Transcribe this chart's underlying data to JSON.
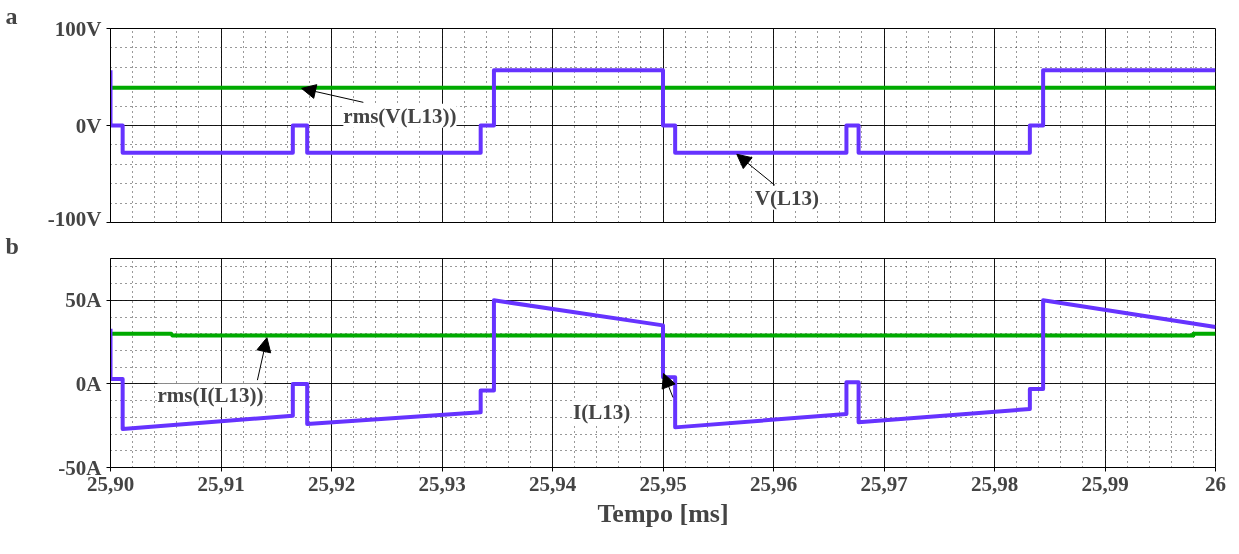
{
  "chart_data": [
    {
      "type": "line",
      "title": "a",
      "xlim": [
        25.9,
        26.0
      ],
      "ylim": [
        -100,
        100
      ],
      "xticks": [
        {
          "value": 25.9,
          "label": null
        },
        {
          "value": 25.91,
          "label": null
        },
        {
          "value": 25.92,
          "label": null
        },
        {
          "value": 25.93,
          "label": null
        },
        {
          "value": 25.94,
          "label": null
        },
        {
          "value": 25.95,
          "label": null
        },
        {
          "value": 25.96,
          "label": null
        },
        {
          "value": 25.97,
          "label": null
        },
        {
          "value": 25.98,
          "label": null
        },
        {
          "value": 25.99,
          "label": null
        },
        {
          "value": 26.0,
          "label": null
        }
      ],
      "yticks": [
        {
          "value": -100,
          "label": "-100V"
        },
        {
          "value": 0,
          "label": "0V"
        },
        {
          "value": 100,
          "label": "100V"
        }
      ],
      "tick_labels": "y",
      "grid": true,
      "line_style": "solid",
      "series": [
        {
          "color": "#00aa00",
          "x": [
            25.9,
            26.0
          ],
          "values": [
            39,
            39
          ]
        },
        {
          "color": "#6633ff",
          "x": [
            25.9,
            25.9,
            25.9011,
            25.9011,
            25.9165,
            25.9165,
            25.9178,
            25.9178,
            25.9335,
            25.9335,
            25.9347,
            25.9347,
            25.95,
            25.95,
            25.9511,
            25.9511,
            25.9666,
            25.9666,
            25.9677,
            25.9677,
            25.9832,
            25.9832,
            25.9844,
            25.9844,
            26.0
          ],
          "values": [
            57,
            0,
            0,
            -28,
            -28,
            0,
            0,
            -28,
            -28,
            0,
            0,
            57,
            57,
            0,
            0,
            -28,
            -28,
            0,
            0,
            -28,
            -28,
            0,
            0,
            57,
            57
          ]
        }
      ],
      "annotations": [
        {
          "text": "rms(V(L13))",
          "x": 25.917,
          "y": 39
        },
        {
          "text": "V(L13)",
          "x": 25.9565,
          "y": -28
        }
      ]
    },
    {
      "type": "line",
      "title": "b",
      "xlabel": "Tempo [ms]",
      "xlim": [
        25.9,
        26.0
      ],
      "ylim": [
        -50,
        75
      ],
      "xticks": [
        {
          "value": 25.9,
          "label": "25,90"
        },
        {
          "value": 25.91,
          "label": "25,91"
        },
        {
          "value": 25.92,
          "label": "25,92"
        },
        {
          "value": 25.93,
          "label": "25,93"
        },
        {
          "value": 25.94,
          "label": "25,94"
        },
        {
          "value": 25.95,
          "label": "25,95"
        },
        {
          "value": 25.96,
          "label": "25,96"
        },
        {
          "value": 25.97,
          "label": "25,97"
        },
        {
          "value": 25.98,
          "label": "25,98"
        },
        {
          "value": 25.99,
          "label": "25,99"
        },
        {
          "value": 26.0,
          "label": "26"
        }
      ],
      "yticks": [
        {
          "value": -50,
          "label": "-50A"
        },
        {
          "value": 0,
          "label": "0A"
        },
        {
          "value": 50,
          "label": "50A"
        }
      ],
      "grid": true,
      "line_style": "solid",
      "series": [
        {
          "color": "#00aa00",
          "x": [
            25.9,
            25.9055,
            25.9056,
            25.998,
            25.998,
            26.0
          ],
          "values": [
            30,
            30,
            29,
            29,
            30,
            30
          ]
        },
        {
          "color": "#6633ff",
          "x": [
            25.9,
            25.9,
            25.9011,
            25.9011,
            25.9165,
            25.9165,
            25.9178,
            25.9178,
            25.9335,
            25.9335,
            25.9347,
            25.9347,
            25.95,
            25.95,
            25.9511,
            25.9511,
            25.9666,
            25.9666,
            25.9677,
            25.9677,
            25.9832,
            25.9832,
            25.9844,
            25.9844,
            26.0
          ],
          "values": [
            33,
            3,
            3,
            -27,
            -19,
            0,
            0,
            -24,
            -17,
            -4,
            -4,
            50,
            35,
            4,
            4,
            -26,
            -18,
            1,
            1,
            -23,
            -15,
            -3,
            -3,
            50,
            34
          ]
        }
      ],
      "annotations": [
        {
          "text": "rms(I(L13))",
          "x": 25.9142,
          "y": 29
        },
        {
          "text": "I(L13)",
          "x": 25.95,
          "y": 7
        }
      ]
    }
  ]
}
